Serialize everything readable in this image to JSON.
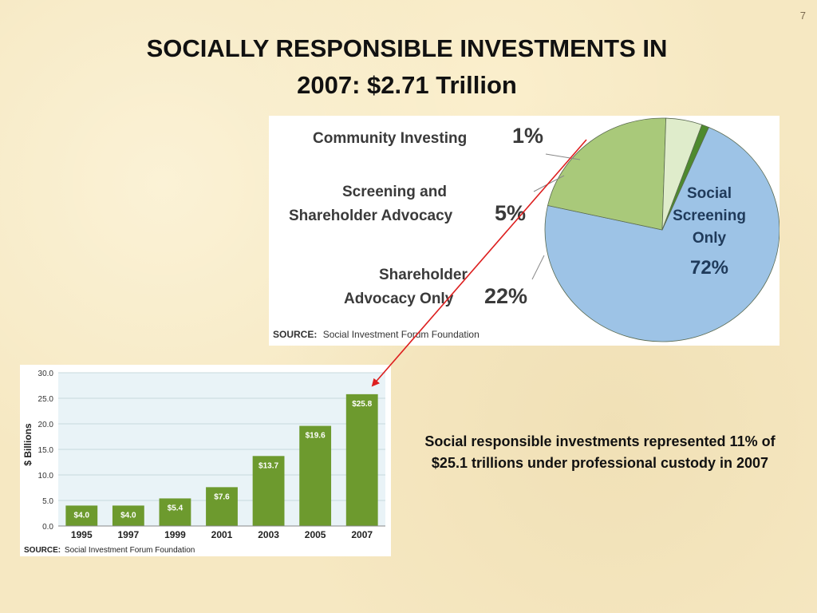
{
  "slide": {
    "page_number": "7",
    "title_line1": "SOCIALLY RESPONSIBLE INVESTMENTS IN",
    "title_line2": "2007: $2.71 Trillion",
    "note": "Social responsible investments represented 11% of $25.1 trillions under professional custody in 2007"
  },
  "colors": {
    "pie_social_screening": "#9dc3e6",
    "pie_shareholder_advocacy": "#a9c97a",
    "pie_screening_and_advocacy": "#dfeccb",
    "pie_community": "#4e8a2e",
    "bar_fill": "#6d9a2e",
    "plot_bg": "#e9f3f7",
    "arrow": "#dd1f1f"
  },
  "chart_data": [
    {
      "type": "pie",
      "slices": [
        {
          "label": "Social Screening Only",
          "value": 72,
          "display": "72%"
        },
        {
          "label": "Shareholder Advocacy Only",
          "value": 22,
          "display": "22%"
        },
        {
          "label": "Screening and Shareholder Advocacy",
          "value": 5,
          "display": "5%"
        },
        {
          "label": "Community Investing",
          "value": 1,
          "display": "1%"
        }
      ],
      "label_lines": {
        "social_1": "Social",
        "social_2": "Screening",
        "social_3": "Only",
        "social_pct": "72%",
        "community": "Community Investing",
        "community_pct": "1%",
        "screening_1": "Screening and",
        "screening_2": "Shareholder Advocacy",
        "screening_pct": "5%",
        "advocacy_1": "Shareholder",
        "advocacy_2": "Advocacy Only",
        "advocacy_pct": "22%"
      },
      "source_label": "SOURCE:",
      "source_text": "Social Investment Forum Foundation"
    },
    {
      "type": "bar",
      "categories": [
        "1995",
        "1997",
        "1999",
        "2001",
        "2003",
        "2005",
        "2007"
      ],
      "values": [
        4.0,
        4.0,
        5.4,
        7.6,
        13.7,
        19.6,
        25.8
      ],
      "value_labels": [
        "$4.0",
        "$4.0",
        "$5.4",
        "$7.6",
        "$13.7",
        "$19.6",
        "$25.8"
      ],
      "ylabel": "$ Billions",
      "ylim": [
        0,
        30
      ],
      "yticks": [
        "0.0",
        "5.0",
        "10.0",
        "15.0",
        "20.0",
        "25.0",
        "30.0"
      ],
      "grid": true,
      "source_label": "SOURCE:",
      "source_text": "Social Investment Forum Foundation"
    }
  ]
}
